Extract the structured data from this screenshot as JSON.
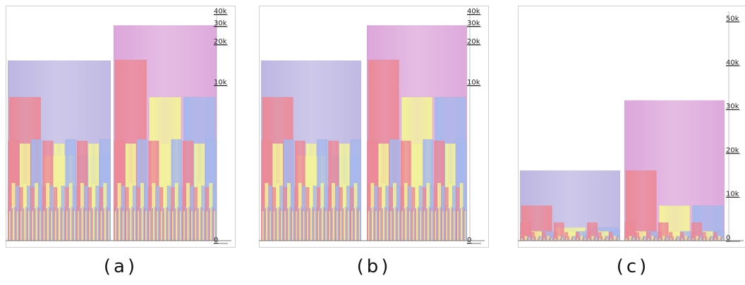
{
  "colors": {
    "pink": "#ec8a98",
    "yellow": "#f3f39a",
    "blue": "#a7b8ec",
    "lavender": "#bdb6e2",
    "magenta": "#dca6da"
  },
  "captions": {
    "a": "(a)",
    "b": "(b)",
    "c": "(c)"
  },
  "chart_data": [
    {
      "type": "bar",
      "panel": "a",
      "scale": "log",
      "ylim": [
        0,
        40000
      ],
      "tick_labels": [
        "40k",
        "30k",
        "20k",
        "10k",
        "0"
      ],
      "tick_values": [
        40000,
        30000,
        20000,
        10000,
        0
      ],
      "caption": "(a)"
    },
    {
      "type": "bar",
      "panel": "b",
      "scale": "log",
      "ylim": [
        0,
        40000
      ],
      "tick_labels": [
        "40k",
        "30k",
        "20k",
        "10k",
        "0"
      ],
      "tick_values": [
        40000,
        30000,
        20000,
        10000,
        0
      ],
      "caption": "(b)"
    },
    {
      "type": "bar",
      "panel": "c",
      "scale": "linear",
      "ylim": [
        0,
        50000
      ],
      "tick_labels": [
        "50k",
        "40k",
        "30k",
        "20k",
        "10k",
        "0"
      ],
      "tick_values": [
        50000,
        40000,
        30000,
        20000,
        10000,
        0
      ],
      "caption": "(c)"
    }
  ]
}
